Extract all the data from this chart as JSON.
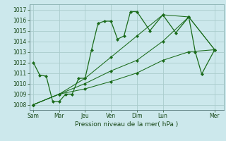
{
  "background_color": "#cce8ec",
  "grid_color": "#aacccc",
  "line_color": "#1a6b1a",
  "marker_color": "#1a6b1a",
  "xlabel": "Pression niveau de la mer( hPa )",
  "ylim": [
    1007.5,
    1017.5
  ],
  "yticks": [
    1008,
    1009,
    1010,
    1011,
    1012,
    1013,
    1014,
    1015,
    1016,
    1017
  ],
  "x_day_labels": [
    "Sam",
    "Mar",
    "Jeu",
    "Ven",
    "Dim",
    "Lun",
    "Mer"
  ],
  "x_day_positions": [
    0,
    2,
    4,
    6,
    8,
    10,
    14
  ],
  "xlim": [
    -0.3,
    14.7
  ],
  "series": [
    {
      "x": [
        0,
        0.5,
        1,
        1.5,
        2,
        2.5,
        3,
        3.5,
        4,
        4.5,
        5,
        5.5,
        6,
        6.5,
        7,
        7.5,
        8,
        9,
        10,
        11,
        12,
        12.5,
        13,
        14
      ],
      "y": [
        1012.0,
        1010.8,
        1010.7,
        1008.3,
        1008.3,
        1009.0,
        1009.0,
        1010.5,
        1010.5,
        1013.2,
        1015.7,
        1015.9,
        1015.9,
        1014.2,
        1014.5,
        1016.8,
        1016.8,
        1015.0,
        1016.5,
        1014.8,
        1016.3,
        1013.0,
        1010.9,
        1013.2
      ]
    },
    {
      "x": [
        0,
        2,
        4,
        6,
        8,
        10,
        12,
        14
      ],
      "y": [
        1008.0,
        1009.0,
        1009.5,
        1010.2,
        1011.0,
        1012.2,
        1013.0,
        1013.2
      ]
    },
    {
      "x": [
        0,
        2,
        4,
        6,
        8,
        10,
        12,
        14
      ],
      "y": [
        1008.0,
        1009.0,
        1010.0,
        1011.2,
        1012.2,
        1014.0,
        1016.3,
        1013.2
      ]
    },
    {
      "x": [
        0,
        2,
        4,
        6,
        8,
        10,
        12,
        14
      ],
      "y": [
        1008.0,
        1009.0,
        1010.5,
        1012.5,
        1014.5,
        1016.5,
        1016.3,
        1013.2
      ]
    }
  ]
}
